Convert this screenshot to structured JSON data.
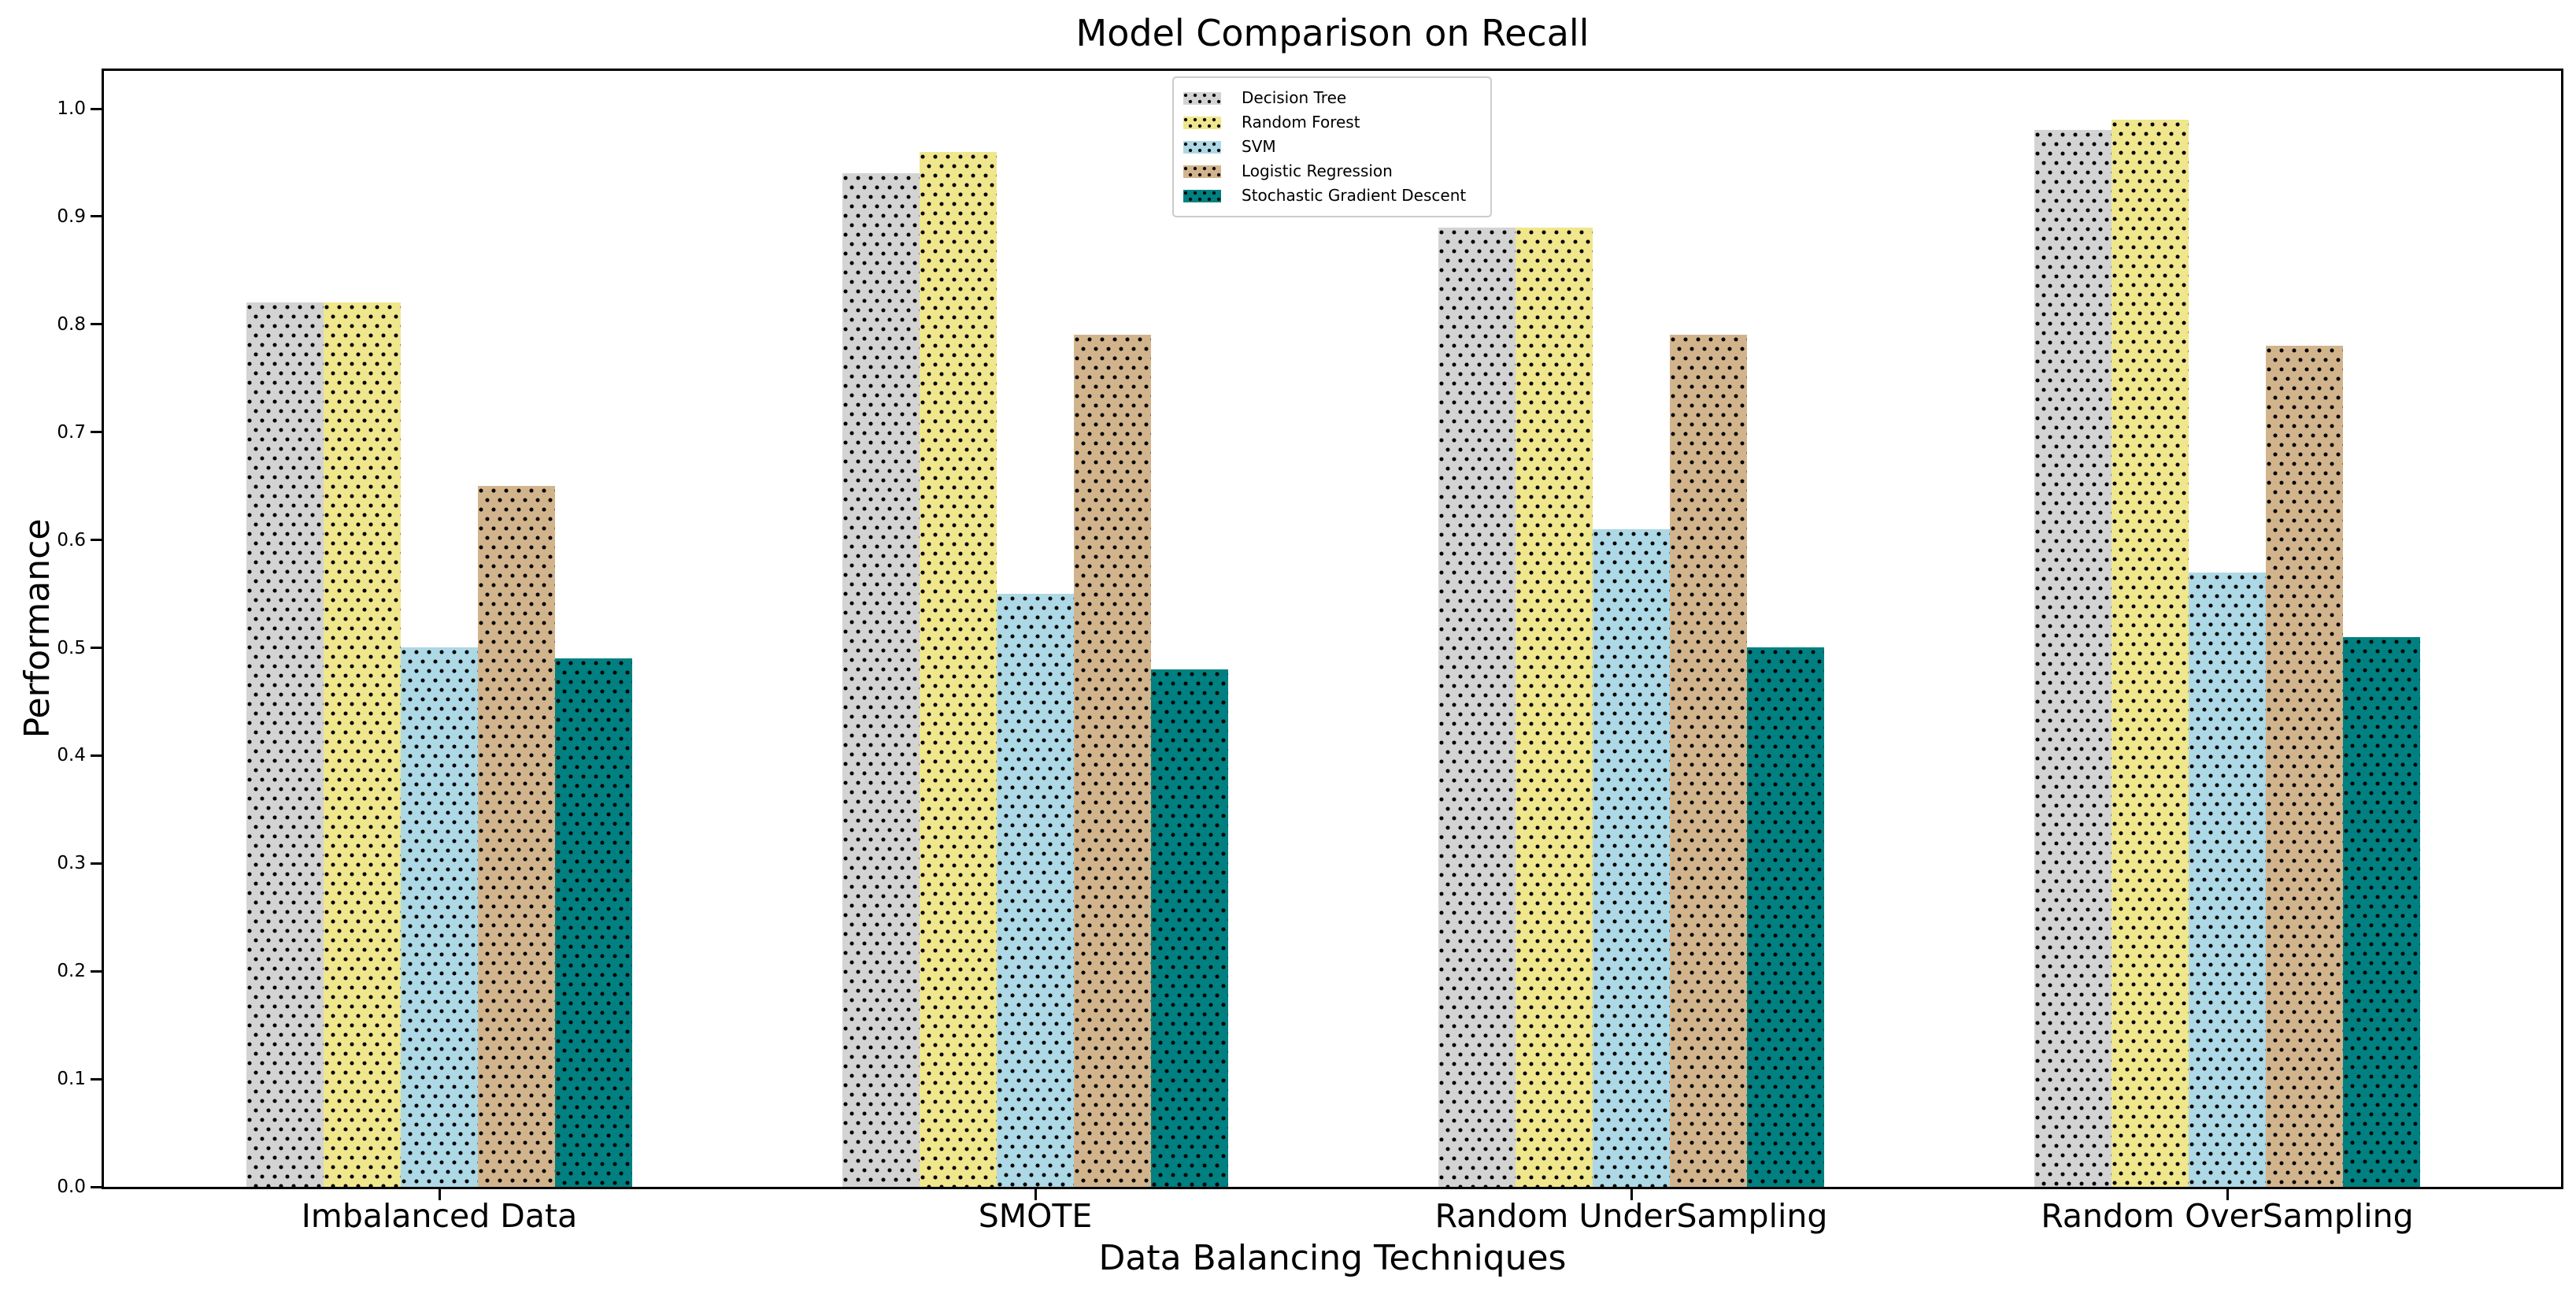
{
  "chart_data": {
    "type": "bar",
    "title": "Model Comparison on Recall",
    "xlabel": "Data Balancing Techniques",
    "ylabel": "Performance",
    "categories": [
      "Imbalanced Data",
      "SMOTE",
      "Random UnderSampling",
      "Random OverSampling"
    ],
    "series": [
      {
        "name": "Decision Tree",
        "color": "#d3d3d3",
        "hatch": "dots",
        "values": [
          0.82,
          0.94,
          0.89,
          0.98
        ]
      },
      {
        "name": "Random Forest",
        "color": "#f0e68c",
        "hatch": "dots",
        "values": [
          0.82,
          0.96,
          0.89,
          0.99
        ]
      },
      {
        "name": "SVM",
        "color": "#add8e6",
        "hatch": "dots",
        "values": [
          0.5,
          0.55,
          0.61,
          0.57
        ]
      },
      {
        "name": "Logistic Regression",
        "color": "#d2b48c",
        "hatch": "dots",
        "values": [
          0.65,
          0.79,
          0.79,
          0.78
        ]
      },
      {
        "name": "Stochastic Gradient Descent",
        "color": "#008080",
        "hatch": "dots",
        "values": [
          0.49,
          0.48,
          0.5,
          0.51
        ]
      }
    ],
    "y_ticks": [
      "0.0",
      "0.1",
      "0.2",
      "0.3",
      "0.4",
      "0.5",
      "0.6",
      "0.7",
      "0.8",
      "0.9",
      "1.0"
    ],
    "ylim": [
      0.0,
      1.04
    ],
    "grid": false,
    "legend_position": "upper center",
    "hatch_color": "#000000"
  }
}
